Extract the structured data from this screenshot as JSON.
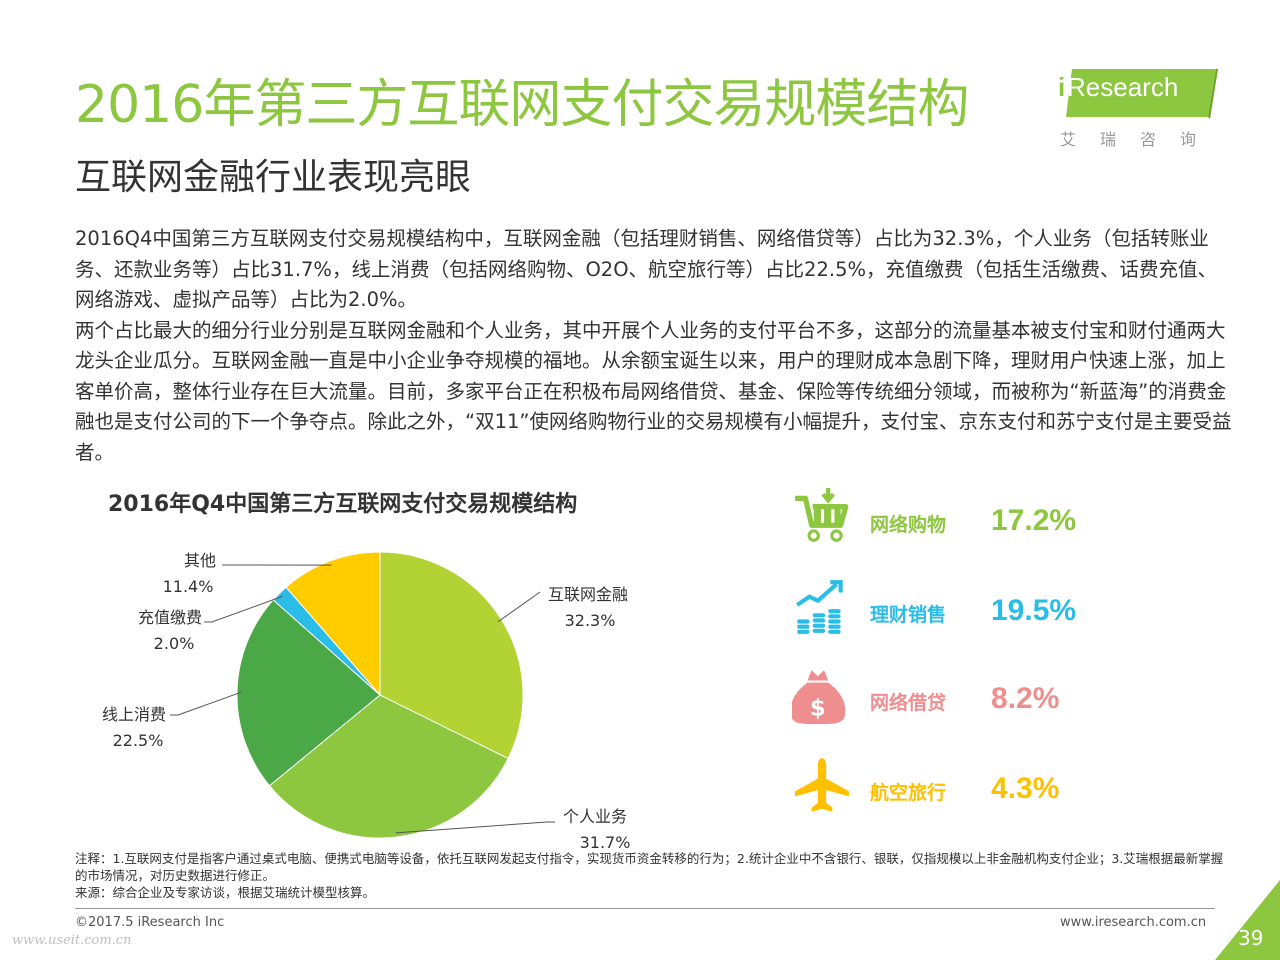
{
  "header": {
    "title": "2016年第三方互联网支付交易规模结构",
    "subtitle": "互联网金融行业表现亮眼",
    "logo_i": "i",
    "logo_text": "Research",
    "logo_cn": "艾瑞咨询"
  },
  "body": {
    "paragraphs": [
      "2016Q4中国第三方互联网支付交易规模结构中，互联网金融（包括理财销售、网络借贷等）占比为32.3%，个人业务（包括转账业务、还款业务等）占比31.7%，线上消费（包括网络购物、O2O、航空旅行等）占比22.5%，充值缴费（包括生活缴费、话费充值、网络游戏、虚拟产品等）占比为2.0%。",
      "两个占比最大的细分行业分别是互联网金融和个人业务，其中开展个人业务的支付平台不多，这部分的流量基本被支付宝和财付通两大龙头企业瓜分。互联网金融一直是中小企业争夺规模的福地。从余额宝诞生以来，用户的理财成本急剧下降，理财用户快速上涨，加上客单价高，整体行业存在巨大流量。目前，多家平台正在积极布局网络借贷、基金、保险等传统细分领域，而被称为“新蓝海”的消费金融也是支付公司的下一个争夺点。除此之外，“双11”使网络购物行业的交易规模有小幅提升，支付宝、京东支付和苏宁支付是主要受益者。"
    ]
  },
  "chart_data": {
    "type": "pie",
    "title": "2016年Q4中国第三方互联网支付交易规模结构",
    "slices": [
      {
        "label": "互联网金融",
        "value": 32.3,
        "display": "32.3%",
        "color": "#b3d334"
      },
      {
        "label": "个人业务",
        "value": 31.7,
        "display": "31.7%",
        "color": "#8dc63f"
      },
      {
        "label": "线上消费",
        "value": 22.5,
        "display": "22.5%",
        "color": "#4aa847"
      },
      {
        "label": "充值缴费",
        "value": 2.0,
        "display": "2.0%",
        "color": "#29bde8"
      },
      {
        "label": "其他",
        "value": 11.4,
        "display": "11.4%",
        "color": "#ffcc00"
      }
    ]
  },
  "kpis": [
    {
      "label": "网络购物",
      "value": "17.2%",
      "icon": "shopping-cart-icon",
      "color": "#8dc63f"
    },
    {
      "label": "理财销售",
      "value": "19.5%",
      "icon": "coins-growth-icon",
      "color": "#29bde8"
    },
    {
      "label": "网络借贷",
      "value": "8.2%",
      "icon": "money-bag-icon",
      "color": "#ee8e8e"
    },
    {
      "label": "航空旅行",
      "value": "4.3%",
      "icon": "airplane-icon",
      "color": "#ffc000"
    }
  ],
  "notes": [
    "注释：1.互联网支付是指客户通过桌式电脑、便携式电脑等设备，依托互联网发起支付指令，实现货币资金转移的行为；2.统计企业中不含银行、银联，仅指规模以上非金融机构支付企业；3.艾瑞根据最新掌握的市场情况，对历史数据进行修正。",
    "来源：综合企业及专家访谈，根据艾瑞统计模型核算。"
  ],
  "footer": {
    "copyright": "©2017.5 iResearch Inc",
    "website": "www.iresearch.com.cn",
    "page_number": "39",
    "watermark": "www.useit.com.cn"
  }
}
